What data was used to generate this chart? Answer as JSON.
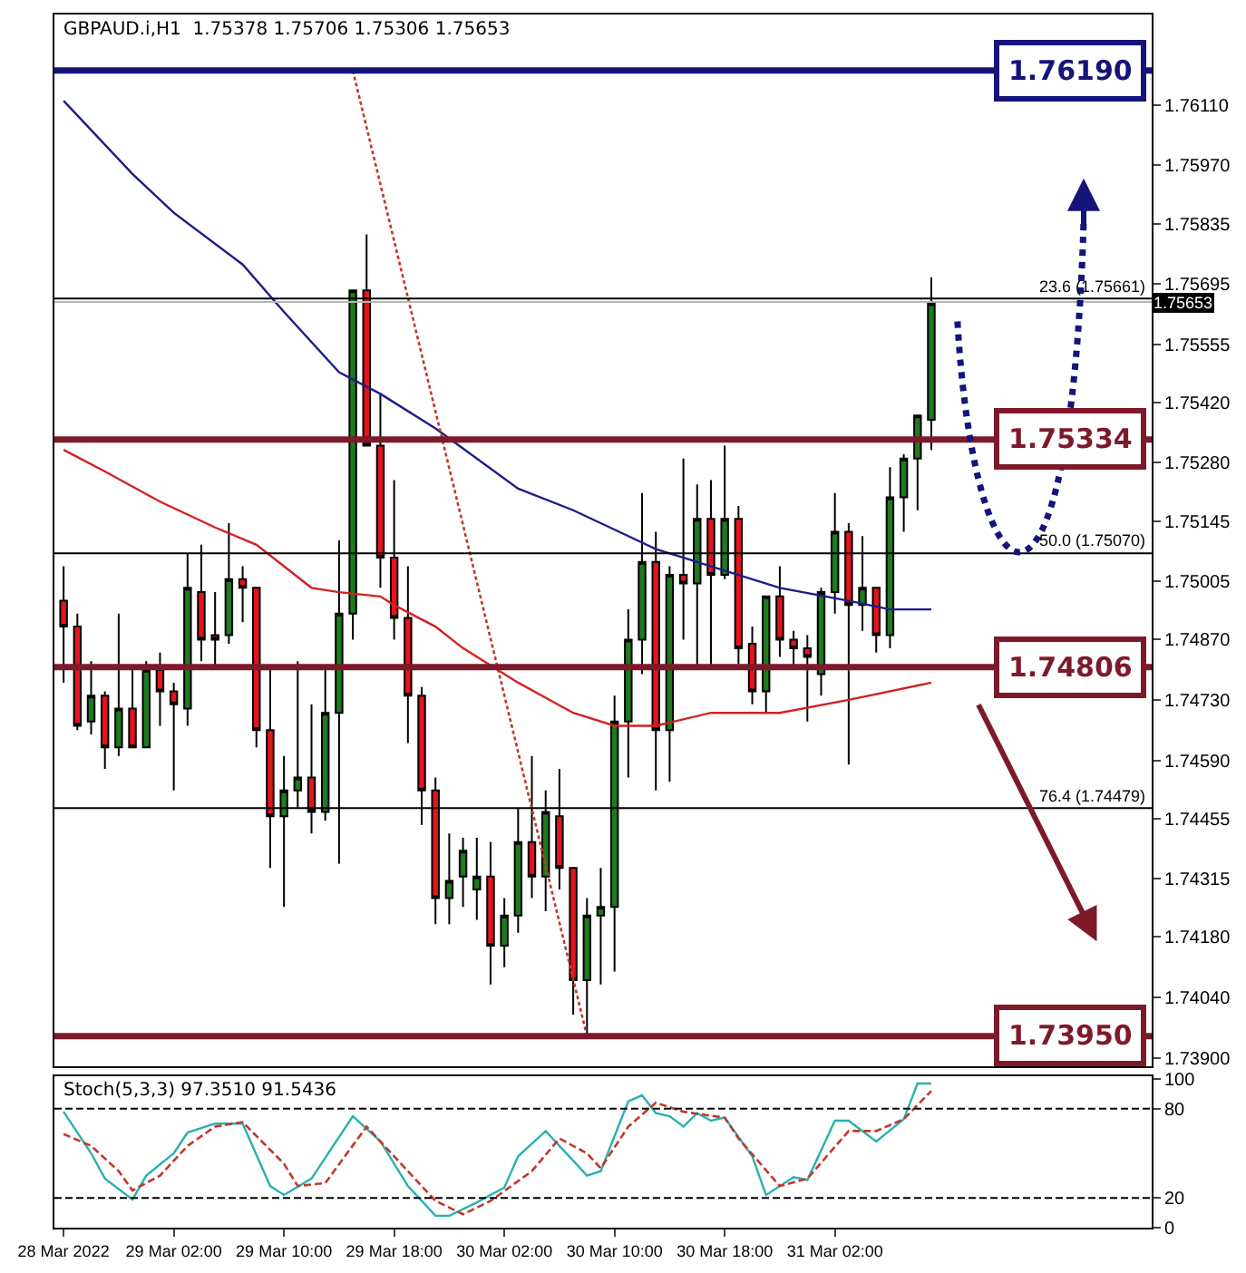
{
  "chart_data": [
    {
      "type": "candlestick",
      "title": "GBPAUD.i,H1  1.75378 1.75706 1.75306 1.75653",
      "x": [
        "2022-03-28T18:00",
        "2022-03-28T19:00",
        "2022-03-28T20:00",
        "2022-03-28T21:00",
        "2022-03-28T22:00",
        "2022-03-28T23:00",
        "2022-03-29T00:00",
        "2022-03-29T01:00",
        "2022-03-29T02:00",
        "2022-03-29T03:00",
        "2022-03-29T04:00",
        "2022-03-29T05:00",
        "2022-03-29T06:00",
        "2022-03-29T07:00",
        "2022-03-29T08:00",
        "2022-03-29T09:00",
        "2022-03-29T10:00",
        "2022-03-29T11:00",
        "2022-03-29T12:00",
        "2022-03-29T13:00",
        "2022-03-29T14:00",
        "2022-03-29T15:00",
        "2022-03-29T16:00",
        "2022-03-29T17:00",
        "2022-03-29T18:00",
        "2022-03-29T19:00",
        "2022-03-29T20:00",
        "2022-03-29T21:00",
        "2022-03-29T22:00",
        "2022-03-29T23:00",
        "2022-03-30T00:00",
        "2022-03-30T01:00",
        "2022-03-30T02:00",
        "2022-03-30T03:00",
        "2022-03-30T04:00",
        "2022-03-30T05:00",
        "2022-03-30T06:00",
        "2022-03-30T07:00",
        "2022-03-30T08:00",
        "2022-03-30T09:00",
        "2022-03-30T10:00",
        "2022-03-30T11:00",
        "2022-03-30T12:00",
        "2022-03-30T13:00",
        "2022-03-30T14:00",
        "2022-03-30T15:00",
        "2022-03-30T16:00",
        "2022-03-30T17:00",
        "2022-03-30T18:00",
        "2022-03-30T19:00",
        "2022-03-30T20:00",
        "2022-03-30T21:00",
        "2022-03-30T22:00",
        "2022-03-30T23:00",
        "2022-03-31T00:00",
        "2022-03-31T01:00",
        "2022-03-31T02:00",
        "2022-03-31T03:00",
        "2022-03-31T04:00",
        "2022-03-31T05:00",
        "2022-03-31T06:00",
        "2022-03-31T07:00",
        "2022-03-31T08:00",
        "2022-03-31T09:00"
      ],
      "ohlc": [
        [
          1.7496,
          1.7504,
          1.7477,
          1.749
        ],
        [
          1.749,
          1.7493,
          1.7466,
          1.7467
        ],
        [
          1.7468,
          1.7482,
          1.7465,
          1.7474
        ],
        [
          1.7474,
          1.7475,
          1.7457,
          1.7462
        ],
        [
          1.7462,
          1.7493,
          1.746,
          1.7471
        ],
        [
          1.7471,
          1.748,
          1.7462,
          1.7462
        ],
        [
          1.7462,
          1.7482,
          1.7462,
          1.748
        ],
        [
          1.748,
          1.7484,
          1.7467,
          1.7475
        ],
        [
          1.7475,
          1.7477,
          1.7452,
          1.7472
        ],
        [
          1.7471,
          1.7507,
          1.7467,
          1.7499
        ],
        [
          1.7498,
          1.7509,
          1.7482,
          1.7487
        ],
        [
          1.7488,
          1.7498,
          1.748,
          1.7487
        ],
        [
          1.7488,
          1.7514,
          1.7486,
          1.7501
        ],
        [
          1.7501,
          1.7504,
          1.7491,
          1.7499
        ],
        [
          1.7499,
          1.7499,
          1.7462,
          1.7466
        ],
        [
          1.7466,
          1.748,
          1.7434,
          1.7446
        ],
        [
          1.7446,
          1.746,
          1.7425,
          1.7452
        ],
        [
          1.7452,
          1.7482,
          1.7448,
          1.7455
        ],
        [
          1.7455,
          1.7472,
          1.7442,
          1.7447
        ],
        [
          1.7447,
          1.7481,
          1.7445,
          1.747
        ],
        [
          1.747,
          1.751,
          1.7435,
          1.7493
        ],
        [
          1.7493,
          1.7568,
          1.7487,
          1.7568
        ],
        [
          1.7568,
          1.7581,
          1.7532,
          1.7532
        ],
        [
          1.7532,
          1.7544,
          1.7499,
          1.7506
        ],
        [
          1.7506,
          1.7524,
          1.7487,
          1.7492
        ],
        [
          1.7492,
          1.7504,
          1.7463,
          1.7474
        ],
        [
          1.7474,
          1.7476,
          1.7444,
          1.7452
        ],
        [
          1.7452,
          1.7455,
          1.7421,
          1.7427
        ],
        [
          1.7427,
          1.7442,
          1.7421,
          1.7431
        ],
        [
          1.7432,
          1.7441,
          1.7425,
          1.7438
        ],
        [
          1.7429,
          1.7441,
          1.7422,
          1.7432
        ],
        [
          1.7432,
          1.744,
          1.7407,
          1.7416
        ],
        [
          1.7416,
          1.7427,
          1.7411,
          1.7423
        ],
        [
          1.7423,
          1.7448,
          1.7419,
          1.744
        ],
        [
          1.744,
          1.746,
          1.7427,
          1.7432
        ],
        [
          1.7432,
          1.7452,
          1.7424,
          1.7447
        ],
        [
          1.7446,
          1.7457,
          1.7429,
          1.7434
        ],
        [
          1.7434,
          1.7434,
          1.74,
          1.7408
        ],
        [
          1.7408,
          1.7427,
          1.7395,
          1.7423
        ],
        [
          1.7423,
          1.7434,
          1.7407,
          1.7425
        ],
        [
          1.7425,
          1.7474,
          1.741,
          1.7468
        ],
        [
          1.7468,
          1.7494,
          1.7455,
          1.7487
        ],
        [
          1.7487,
          1.7521,
          1.7479,
          1.7505
        ],
        [
          1.7505,
          1.7512,
          1.7452,
          1.7466
        ],
        [
          1.7466,
          1.7504,
          1.7454,
          1.7502
        ],
        [
          1.7502,
          1.7529,
          1.7487,
          1.75
        ],
        [
          1.75,
          1.7523,
          1.748,
          1.7515
        ],
        [
          1.7515,
          1.7524,
          1.7481,
          1.7502
        ],
        [
          1.7502,
          1.7532,
          1.7501,
          1.7515
        ],
        [
          1.7515,
          1.7518,
          1.748,
          1.7485
        ],
        [
          1.7486,
          1.749,
          1.7472,
          1.7475
        ],
        [
          1.7475,
          1.7497,
          1.747,
          1.7497
        ],
        [
          1.7497,
          1.7504,
          1.7483,
          1.7487
        ],
        [
          1.7487,
          1.7489,
          1.7481,
          1.7485
        ],
        [
          1.7485,
          1.7488,
          1.7468,
          1.7483
        ],
        [
          1.7479,
          1.7499,
          1.7474,
          1.7498
        ],
        [
          1.7498,
          1.7521,
          1.7493,
          1.7512
        ],
        [
          1.7512,
          1.7514,
          1.7458,
          1.7495
        ],
        [
          1.7495,
          1.7511,
          1.7489,
          1.7499
        ],
        [
          1.7499,
          1.7499,
          1.7484,
          1.7488
        ],
        [
          1.7488,
          1.7527,
          1.7485,
          1.752
        ],
        [
          1.752,
          1.753,
          1.7512,
          1.7529
        ],
        [
          1.7529,
          1.7539,
          1.7517,
          1.7539
        ],
        [
          1.7538,
          1.7571,
          1.7531,
          1.7565
        ]
      ],
      "series": [
        {
          "type": "line",
          "color": "#1c1c8c",
          "x": [
            "2022-03-28T18:00",
            "2022-03-28T23:00",
            "2022-03-29T02:00",
            "2022-03-29T07:00",
            "2022-03-29T10:00",
            "2022-03-29T14:00",
            "2022-03-29T17:00",
            "2022-03-29T21:00",
            "2022-03-30T03:00",
            "2022-03-30T07:00",
            "2022-03-30T11:00",
            "2022-03-30T13:00",
            "2022-03-30T17:00",
            "2022-03-30T22:00",
            "2022-03-31T03:00",
            "2022-03-31T06:00",
            "2022-03-31T09:00"
          ],
          "values": [
            1.7612,
            1.7595,
            1.7586,
            1.7574,
            1.7563,
            1.7549,
            1.7544,
            1.7536,
            1.7522,
            1.7517,
            1.7511,
            1.7508,
            1.7504,
            1.7499,
            1.7496,
            1.7494,
            1.7494
          ]
        },
        {
          "type": "line",
          "color": "#d42020",
          "x": [
            "2022-03-28T18:00",
            "2022-03-28T21:00",
            "2022-03-29T01:00",
            "2022-03-29T05:00",
            "2022-03-29T08:00",
            "2022-03-29T12:00",
            "2022-03-29T14:00",
            "2022-03-29T17:00",
            "2022-03-29T18:00",
            "2022-03-29T21:00",
            "2022-03-29T23:00",
            "2022-03-30T03:00",
            "2022-03-30T07:00",
            "2022-03-30T10:00",
            "2022-03-30T13:00",
            "2022-03-30T17:00",
            "2022-03-30T22:00",
            "2022-03-31T03:00",
            "2022-03-31T09:00"
          ],
          "values": [
            1.7531,
            1.7526,
            1.7519,
            1.7513,
            1.7509,
            1.7499,
            1.7498,
            1.7497,
            1.7495,
            1.749,
            1.7485,
            1.7477,
            1.747,
            1.7467,
            1.7467,
            1.747,
            1.747,
            1.7473,
            1.7477
          ]
        },
        {
          "type": "line",
          "color": "#c0392b",
          "line_style": "dotted",
          "x": [
            "2022-03-29T15:00",
            "2022-03-30T08:00"
          ],
          "values": [
            1.7619,
            1.7395
          ]
        }
      ],
      "xlim": [
        "2022-03-28T17:20",
        "2022-04-01T01:00"
      ],
      "ylim": [
        1.7388,
        1.7632
      ],
      "yticks": [
        {
          "value": 1.7611,
          "label": "1.76110"
        },
        {
          "value": 1.7597,
          "label": "1.75970"
        },
        {
          "value": 1.75835,
          "label": "1.75835"
        },
        {
          "value": 1.75695,
          "label": "1.75695"
        },
        {
          "value": 1.75555,
          "label": "1.75555"
        },
        {
          "value": 1.7542,
          "label": "1.75420"
        },
        {
          "value": 1.7528,
          "label": "1.75280"
        },
        {
          "value": 1.75145,
          "label": "1.75145"
        },
        {
          "value": 1.75005,
          "label": "1.75005"
        },
        {
          "value": 1.7487,
          "label": "1.74870"
        },
        {
          "value": 1.7473,
          "label": "1.74730"
        },
        {
          "value": 1.7459,
          "label": "1.74590"
        },
        {
          "value": 1.74455,
          "label": "1.74455"
        },
        {
          "value": 1.74315,
          "label": "1.74315"
        },
        {
          "value": 1.7418,
          "label": "1.74180"
        },
        {
          "value": 1.7404,
          "label": "1.74040"
        },
        {
          "value": 1.739,
          "label": "1.73900"
        }
      ],
      "ref_lines": [
        {
          "axis": "y",
          "value": 1.75653,
          "label": "1.75653",
          "color": "#b4b4b4"
        },
        {
          "axis": "y",
          "value": 1.75661,
          "label": "23.6 (1.75661)"
        },
        {
          "axis": "y",
          "value": 1.7507,
          "label": "50.0 (1.75070)"
        },
        {
          "axis": "y",
          "value": 1.74479,
          "label": "76.4 (1.74479)"
        },
        {
          "axis": "y",
          "value": 1.7619,
          "label": "1.76190",
          "color": "#14147a",
          "line_style": "solid"
        },
        {
          "axis": "y",
          "value": 1.75334,
          "label": "1.75334",
          "color": "#7d1a2a",
          "line_style": "solid"
        },
        {
          "axis": "y",
          "value": 1.74806,
          "label": "1.74806",
          "color": "#7d1a2a",
          "line_style": "solid"
        },
        {
          "axis": "y",
          "value": 1.7395,
          "label": "1.73950",
          "color": "#7d1a2a",
          "line_style": "solid"
        }
      ],
      "tick_labels": "y"
    },
    {
      "type": "line",
      "title": "Stoch(5,3,3) 97.3510 91.5436",
      "series": [
        {
          "color": "#2ab0b0",
          "x": [
            "2022-03-28T18:00",
            "2022-03-28T20:00",
            "2022-03-28T21:00",
            "2022-03-28T23:00",
            "2022-03-29T00:00",
            "2022-03-29T02:00",
            "2022-03-29T03:00",
            "2022-03-29T05:00",
            "2022-03-29T07:00",
            "2022-03-29T09:00",
            "2022-03-29T10:00",
            "2022-03-29T12:00",
            "2022-03-29T15:00",
            "2022-03-29T17:00",
            "2022-03-29T19:00",
            "2022-03-29T21:00",
            "2022-03-29T22:00",
            "2022-03-30T00:00",
            "2022-03-30T02:00",
            "2022-03-30T03:00",
            "2022-03-30T05:00",
            "2022-03-30T08:00",
            "2022-03-30T09:00",
            "2022-03-30T11:00",
            "2022-03-30T12:00",
            "2022-03-30T13:00",
            "2022-03-30T14:00",
            "2022-03-30T15:00",
            "2022-03-30T16:00",
            "2022-03-30T17:00",
            "2022-03-30T18:00",
            "2022-03-30T20:00",
            "2022-03-30T21:00",
            "2022-03-30T23:00",
            "2022-03-31T00:00",
            "2022-03-31T02:00",
            "2022-03-31T03:00",
            "2022-03-31T05:00",
            "2022-03-31T07:00",
            "2022-03-31T08:00",
            "2022-03-31T09:00"
          ],
          "values": [
            78,
            50,
            33,
            19,
            35,
            50,
            64,
            70,
            70,
            28,
            22,
            33,
            75,
            58,
            28,
            8,
            8,
            17,
            27,
            48,
            65,
            35,
            38,
            85,
            89,
            77,
            75,
            68,
            77,
            72,
            74,
            48,
            22,
            34,
            32,
            72,
            72,
            58,
            73,
            97,
            97
          ]
        },
        {
          "color": "#c0392b",
          "line_style": "dashed",
          "x": [
            "2022-03-28T18:00",
            "2022-03-28T20:00",
            "2022-03-28T22:00",
            "2022-03-28T23:00",
            "2022-03-29T01:00",
            "2022-03-29T03:00",
            "2022-03-29T05:00",
            "2022-03-29T07:00",
            "2022-03-29T10:00",
            "2022-03-29T11:00",
            "2022-03-29T13:00",
            "2022-03-29T16:00",
            "2022-03-29T18:00",
            "2022-03-29T21:00",
            "2022-03-29T23:00",
            "2022-03-30T01:00",
            "2022-03-30T04:00",
            "2022-03-30T06:00",
            "2022-03-30T08:00",
            "2022-03-30T09:00",
            "2022-03-30T11:00",
            "2022-03-30T13:00",
            "2022-03-30T15:00",
            "2022-03-30T18:00",
            "2022-03-30T19:00",
            "2022-03-30T22:00",
            "2022-03-31T00:00",
            "2022-03-31T03:00",
            "2022-03-31T05:00",
            "2022-03-31T07:00",
            "2022-03-31T09:00"
          ],
          "values": [
            63,
            55,
            38,
            25,
            35,
            55,
            68,
            71,
            43,
            28,
            30,
            68,
            48,
            18,
            9,
            18,
            38,
            60,
            50,
            40,
            68,
            84,
            78,
            74,
            60,
            28,
            33,
            65,
            65,
            73,
            92
          ]
        }
      ],
      "xlim": [
        "2022-03-28T17:20",
        "2022-04-01T01:00"
      ],
      "ylim": [
        0,
        102
      ],
      "xticks": [
        {
          "value": "2022-03-28T18:00",
          "label": "28 Mar 2022"
        },
        {
          "value": "2022-03-29T02:00",
          "label": "29 Mar 02:00"
        },
        {
          "value": "2022-03-29T10:00",
          "label": "29 Mar 10:00"
        },
        {
          "value": "2022-03-29T18:00",
          "label": "29 Mar 18:00"
        },
        {
          "value": "2022-03-30T02:00",
          "label": "30 Mar 02:00"
        },
        {
          "value": "2022-03-30T10:00",
          "label": "30 Mar 10:00"
        },
        {
          "value": "2022-03-30T18:00",
          "label": "30 Mar 18:00"
        },
        {
          "value": "2022-03-31T02:00",
          "label": "31 Mar 02:00"
        }
      ],
      "yticks": [
        0,
        20,
        80,
        100
      ],
      "ref_lines": [
        {
          "axis": "y",
          "value": 80,
          "color": "#000000",
          "line_style": "dashed"
        },
        {
          "axis": "y",
          "value": 20,
          "color": "#000000",
          "line_style": "dashed"
        }
      ]
    }
  ]
}
